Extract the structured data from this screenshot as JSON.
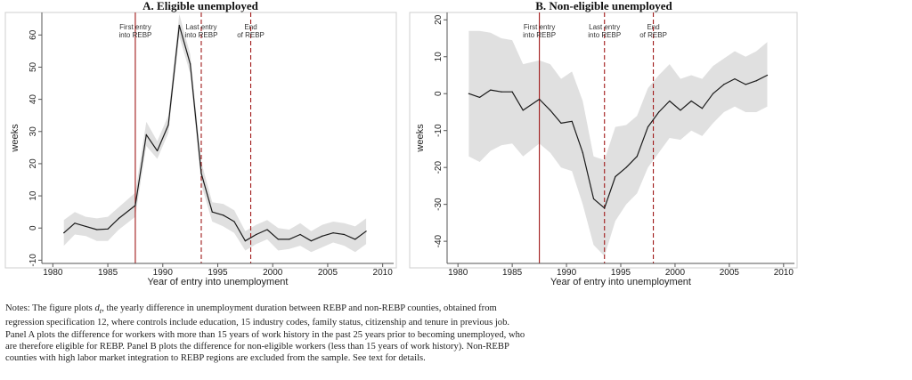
{
  "chart_data": [
    {
      "type": "line",
      "title": "A. Eligible unemployed",
      "xlabel": "Year of entry into unemployment",
      "ylabel": "weeks",
      "xlim": [
        1979,
        2011
      ],
      "ylim": [
        -11,
        67
      ],
      "xticks": [
        1980,
        1985,
        1990,
        1995,
        2000,
        2005,
        2010
      ],
      "yticks": [
        -10,
        0,
        10,
        20,
        30,
        40,
        50,
        60
      ],
      "grid": false,
      "x": [
        1981,
        1982,
        1983,
        1984,
        1985,
        1986,
        1987.5,
        1988.5,
        1989.5,
        1990.5,
        1991.5,
        1992.5,
        1993.5,
        1994.5,
        1995.5,
        1996.5,
        1997.5,
        1998.5,
        1999.5,
        2000.5,
        2001.5,
        2002.5,
        2003.5,
        2004.5,
        2005.5,
        2006.5,
        2007.5,
        2008.5
      ],
      "series": [
        {
          "name": "estimate",
          "values": [
            -1.5,
            1.5,
            0.5,
            -0.5,
            -0.3,
            3,
            7,
            29,
            24,
            32,
            63,
            51,
            17,
            5,
            4,
            2,
            -4,
            -2,
            -0.5,
            -3.5,
            -3.5,
            -2,
            -4,
            -2.5,
            -1.5,
            -2,
            -3.5,
            -1
          ]
        },
        {
          "name": "ci_lower",
          "values": [
            -5.5,
            -2,
            -2.5,
            -4,
            -4,
            -0.5,
            3.5,
            25.5,
            21.5,
            29.5,
            59.5,
            48,
            13.5,
            2,
            0.5,
            -1.5,
            -7,
            -5,
            -3.5,
            -7,
            -6.5,
            -5.5,
            -7.5,
            -6,
            -4.5,
            -5.5,
            -7.5,
            -5
          ]
        },
        {
          "name": "ci_upper",
          "values": [
            2.5,
            5,
            3.5,
            3,
            3.5,
            6.5,
            11,
            33,
            27,
            35,
            66.5,
            54,
            20.5,
            8,
            7.5,
            5.5,
            -1,
            1,
            2.5,
            0,
            -0.5,
            1.5,
            -1,
            1,
            2,
            1.5,
            0.5,
            3
          ]
        }
      ],
      "vlines": [
        {
          "x": 1987.5,
          "label": [
            "First entry",
            "into REBP"
          ],
          "style": "solid"
        },
        {
          "x": 1993.5,
          "label": [
            "Last entry",
            "into REBP"
          ],
          "style": "dashed"
        },
        {
          "x": 1998,
          "label": [
            "End",
            "of REBP"
          ],
          "style": "dashed"
        }
      ]
    },
    {
      "type": "line",
      "title": "B. Non-eligible unemployed",
      "xlabel": "Year of entry into unemployment",
      "ylabel": "weeks",
      "xlim": [
        1979,
        2011
      ],
      "ylim": [
        -46,
        22
      ],
      "xticks": [
        1980,
        1985,
        1990,
        1995,
        2000,
        2005,
        2010
      ],
      "yticks": [
        -40,
        -30,
        -20,
        -10,
        0,
        10,
        20
      ],
      "grid": false,
      "x": [
        1981,
        1982,
        1983,
        1984,
        1985,
        1986,
        1987.5,
        1988.5,
        1989.5,
        1990.5,
        1991.5,
        1992.5,
        1993.5,
        1994.5,
        1995.5,
        1996.5,
        1997.5,
        1998.5,
        1999.5,
        2000.5,
        2001.5,
        2002.5,
        2003.5,
        2004.5,
        2005.5,
        2006.5,
        2007.5,
        2008.5
      ],
      "series": [
        {
          "name": "estimate",
          "values": [
            0,
            -1,
            1,
            0.5,
            0.5,
            -4.5,
            -1.5,
            -4.5,
            -8,
            -7.5,
            -16,
            -28.5,
            -31,
            -22.5,
            -20,
            -17,
            -9,
            -5,
            -2,
            -4.5,
            -2,
            -4,
            0,
            2.5,
            4,
            2.5,
            3.5,
            5
          ]
        },
        {
          "name": "ci_lower",
          "values": [
            -17,
            -18.5,
            -15.5,
            -14,
            -13.5,
            -17,
            -13.5,
            -16,
            -20,
            -21,
            -30,
            -41,
            -44,
            -34.5,
            -30,
            -27,
            -20,
            -16,
            -12,
            -12.5,
            -10,
            -11.5,
            -8,
            -5,
            -3.5,
            -5,
            -5,
            -3.5
          ]
        },
        {
          "name": "ci_upper",
          "values": [
            17,
            17,
            16.5,
            15,
            14.5,
            8,
            9,
            8,
            4,
            6,
            -2,
            -17,
            -18,
            -9,
            -8.5,
            -6,
            1.5,
            5,
            8,
            4,
            5,
            4,
            7.5,
            9.5,
            11.5,
            10,
            11.5,
            14
          ]
        }
      ],
      "vlines": [
        {
          "x": 1987.5,
          "label": [
            "First entry",
            "into REBP"
          ],
          "style": "solid"
        },
        {
          "x": 1993.5,
          "label": [
            "Last entry",
            "into REBP"
          ],
          "style": "dashed"
        },
        {
          "x": 1998,
          "label": [
            "End",
            "of REBP"
          ],
          "style": "dashed"
        }
      ]
    }
  ],
  "notes": {
    "part1": "Notes: The figure plots ",
    "symbol": "d",
    "subscript": "t",
    "part2": ", the yearly difference in unemployment duration between REBP and non-REBP counties, obtained from regression specification 12, where controls include education, 15 industry codes, family status, citizenship and tenure in previous job. Panel A plots the difference for workers with more than 15 years of work history in the past 25 years prior to becoming unemployed, who are therefore eligible for REBP. Panel B plots the difference for non-eligible workers (less than 15 years of work history). Non-REBP counties with high labor market integration to REBP regions are excluded from the sample. See text for details."
  },
  "colors": {
    "band": "#e0e0e0",
    "line": "#1a1a1a",
    "vline": "#a01818",
    "axis": "#555555"
  }
}
